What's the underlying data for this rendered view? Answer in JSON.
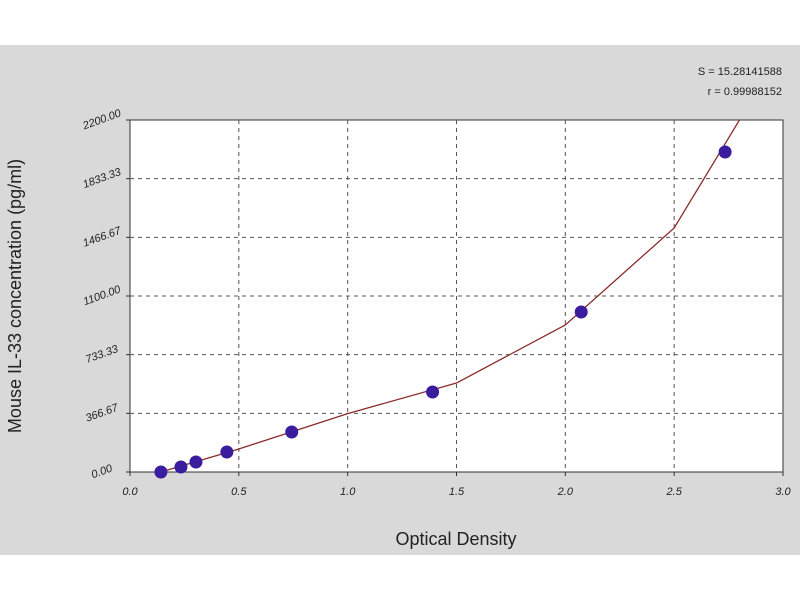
{
  "chart_data": {
    "type": "scatter",
    "x_label": "Optical Density",
    "y_label": "Mouse IL-33 concentration (pg/ml)",
    "annotations": [
      "S = 15.28141588",
      "r = 0.99988152"
    ],
    "xlim": [
      0,
      3
    ],
    "xticks": [
      {
        "value": 0,
        "label": "0.0"
      },
      0.5,
      {
        "value": 1,
        "label": "1.0"
      },
      1.5,
      {
        "value": 2,
        "label": "2.0"
      },
      2.5,
      {
        "value": 3,
        "label": "3.0"
      }
    ],
    "ylim": [
      0,
      2200
    ],
    "yticks": [
      {
        "value": 0,
        "label": "0.00"
      },
      366.67,
      733.33,
      {
        "value": 1100,
        "label": "1100.00"
      },
      1466.67,
      1833.33,
      {
        "value": 2200,
        "label": "2200.00"
      }
    ],
    "grid": true,
    "points": {
      "color": "#3a1d9e",
      "x": [
        0.142,
        0.234,
        0.303,
        0.445,
        0.743,
        1.39,
        2.073,
        2.734
      ],
      "values": [
        0,
        31.25,
        62.5,
        125,
        250,
        500,
        1000,
        2000
      ]
    },
    "fit": {
      "color": "#8b2b2b",
      "x": [
        0.142,
        0.5,
        1.0,
        1.5,
        2.0,
        2.5,
        2.8
      ],
      "values": [
        0,
        144,
        365,
        556,
        919,
        1525,
        2200
      ]
    }
  }
}
